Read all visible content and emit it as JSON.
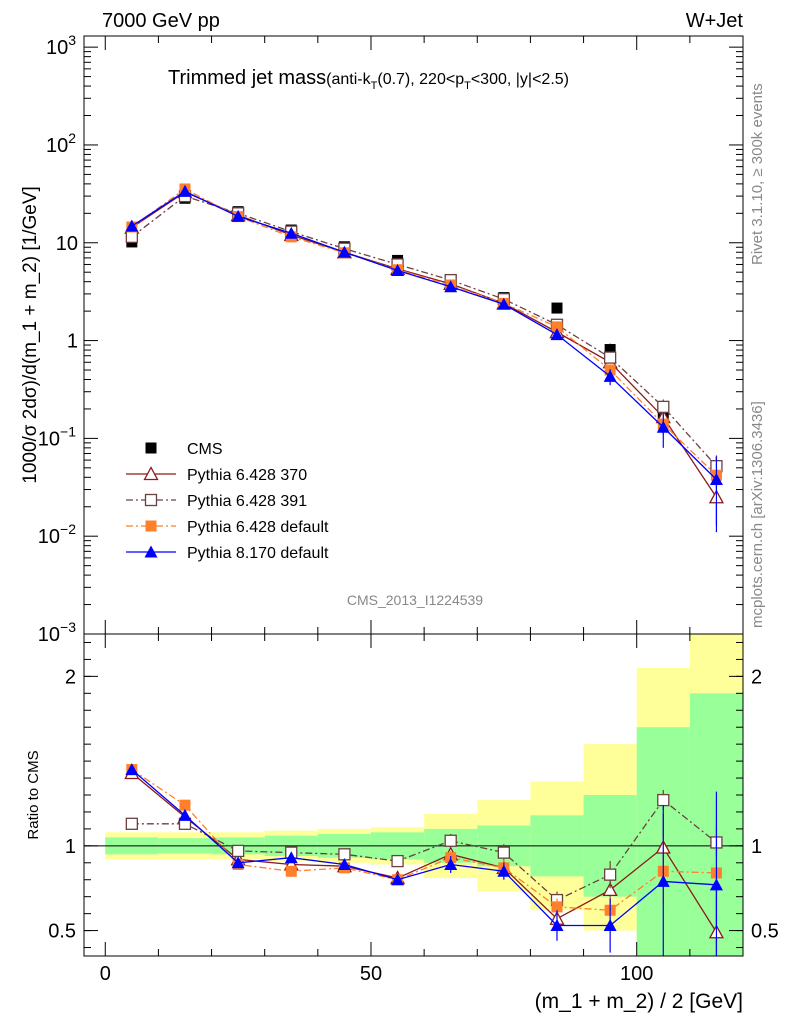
{
  "header": {
    "left": "7000 GeV pp",
    "right": "W+Jet"
  },
  "title": {
    "main": "Trimmed jet mass",
    "sub_a": "(anti-k",
    "sub_a_sub": "T",
    "sub_b": "(0.7), 220<p",
    "sub_b_sub": "T",
    "sub_c": "<300, |y|<2.5)"
  },
  "side_labels": {
    "rivet": "Rivet 3.1.10, ≥ 300k events",
    "mcplots": "mcplots.cern.ch [arXiv:1306.3436]"
  },
  "analysis_id": "CMS_2013_I1224539",
  "colors": {
    "cms": "#000000",
    "p6_370": "#8b1a1a",
    "p6_391": "#6b4040",
    "p6_default": "#ff7f2a",
    "p8_default": "#0000ff",
    "band_inner": "#99ff99",
    "band_outer": "#ffff99"
  },
  "chart_data": [
    {
      "type": "scatter",
      "panel": "main",
      "ylabel": "1000/σ 2dσ)/d(m_1 + m_2) [1/GeV]",
      "yscale": "log",
      "ylim": [
        0.001,
        1300
      ],
      "xlim": [
        -4,
        120
      ],
      "yticks": [
        {
          "v": 0.001,
          "label": "10",
          "exp": "−3"
        },
        {
          "v": 0.01,
          "label": "10",
          "exp": "−2"
        },
        {
          "v": 0.1,
          "label": "10",
          "exp": "−1"
        },
        {
          "v": 1,
          "label": "1",
          "exp": ""
        },
        {
          "v": 10,
          "label": "10",
          "exp": ""
        },
        {
          "v": 100,
          "label": "10",
          "exp": "2"
        },
        {
          "v": 1000,
          "label": "10",
          "exp": "3"
        }
      ],
      "x": [
        5,
        15,
        25,
        35,
        45,
        55,
        65,
        75,
        85,
        95,
        105,
        115
      ],
      "series": [
        {
          "name": "CMS",
          "key": "cms",
          "marker": "square",
          "line": "none",
          "values": [
            10.2,
            28.5,
            20.8,
            13.5,
            9.1,
            6.6,
            4.0,
            2.75,
            2.15,
            0.81,
            0.165,
            0.05
          ],
          "err": [
            0.6,
            1.0,
            0.8,
            0.6,
            0.4,
            0.4,
            0.3,
            0.2,
            0.2,
            0.12,
            0.04,
            0.015
          ]
        },
        {
          "name": "Pythia 6.428 370",
          "key": "p6_370",
          "marker": "triangle-open",
          "line": "solid",
          "values": [
            14.3,
            33.0,
            19.2,
            12.0,
            8.0,
            5.4,
            3.8,
            2.4,
            1.22,
            0.6,
            0.165,
            0.025
          ],
          "err": [
            0.6,
            1.2,
            0.8,
            0.6,
            0.4,
            0.3,
            0.3,
            0.2,
            0.12,
            0.08,
            0.04,
            0.012
          ]
        },
        {
          "name": "Pythia 6.428 391",
          "key": "p6_391",
          "marker": "square-open",
          "line": "dashdot",
          "values": [
            11.5,
            30.0,
            20.0,
            13.0,
            8.7,
            6.0,
            4.15,
            2.65,
            1.45,
            0.67,
            0.21,
            0.052
          ],
          "err": [
            0.5,
            1.1,
            0.8,
            0.6,
            0.4,
            0.3,
            0.3,
            0.2,
            0.14,
            0.08,
            0.04,
            0.015
          ]
        },
        {
          "name": "Pythia 6.428 default",
          "key": "p6_default",
          "marker": "square",
          "line": "dashdot",
          "values": [
            14.5,
            35.5,
            18.5,
            11.5,
            7.9,
            5.3,
            3.7,
            2.4,
            1.38,
            0.5,
            0.14,
            0.042
          ],
          "err": [
            0.6,
            1.3,
            0.8,
            0.6,
            0.4,
            0.3,
            0.3,
            0.2,
            0.14,
            0.07,
            0.03,
            0.013
          ]
        },
        {
          "name": "Pythia 8.170 default",
          "key": "p8_default",
          "marker": "triangle",
          "line": "solid",
          "values": [
            14.8,
            33.5,
            18.6,
            12.5,
            8.0,
            5.2,
            3.55,
            2.35,
            1.15,
            0.43,
            0.13,
            0.038
          ],
          "err": [
            0.6,
            1.2,
            0.8,
            0.6,
            0.4,
            0.3,
            0.3,
            0.2,
            0.12,
            0.08,
            0.05,
            0.027
          ]
        }
      ]
    },
    {
      "type": "scatter",
      "panel": "ratio",
      "xlabel": "(m_1 + m_2) / 2 [GeV]",
      "ylabel": "Ratio to CMS",
      "ylim": [
        0.35,
        2.25
      ],
      "xlim": [
        -4,
        120
      ],
      "yticks": [
        0.5,
        1,
        2
      ],
      "xticks": [
        0,
        50,
        100
      ],
      "bins": [
        [
          0,
          10
        ],
        [
          10,
          20
        ],
        [
          20,
          30
        ],
        [
          30,
          40
        ],
        [
          40,
          50
        ],
        [
          50,
          60
        ],
        [
          60,
          70
        ],
        [
          70,
          80
        ],
        [
          80,
          90
        ],
        [
          90,
          100
        ],
        [
          100,
          110
        ],
        [
          110,
          120
        ]
      ],
      "band_inner": [
        [
          0.95,
          1.05
        ],
        [
          0.955,
          1.045
        ],
        [
          0.95,
          1.05
        ],
        [
          0.94,
          1.06
        ],
        [
          0.93,
          1.07
        ],
        [
          0.92,
          1.08
        ],
        [
          0.9,
          1.1
        ],
        [
          0.88,
          1.12
        ],
        [
          0.82,
          1.18
        ],
        [
          0.7,
          1.3
        ],
        [
          0.3,
          1.7
        ],
        [
          0.15,
          1.9
        ]
      ],
      "band_outer": [
        [
          0.92,
          1.08
        ],
        [
          0.92,
          1.08
        ],
        [
          0.92,
          1.08
        ],
        [
          0.91,
          1.09
        ],
        [
          0.9,
          1.1
        ],
        [
          0.89,
          1.11
        ],
        [
          0.81,
          1.19
        ],
        [
          0.73,
          1.27
        ],
        [
          0.62,
          1.38
        ],
        [
          0.5,
          1.6
        ],
        [
          0.2,
          2.05
        ],
        [
          0.1,
          2.3
        ]
      ],
      "series": [
        {
          "key": "p6_370",
          "marker": "triangle-open",
          "line": "solid",
          "values": [
            1.43,
            1.17,
            0.92,
            0.89,
            0.88,
            0.81,
            0.95,
            0.87,
            0.57,
            0.74,
            0.99,
            0.49
          ],
          "err": [
            0.02,
            0.02,
            0.02,
            0.03,
            0.03,
            0.03,
            0.04,
            0.05,
            0.05,
            0.08,
            0.2,
            0.3
          ]
        },
        {
          "key": "p6_391",
          "marker": "square-open",
          "line": "dashdot",
          "values": [
            1.13,
            1.13,
            0.97,
            0.96,
            0.95,
            0.91,
            1.03,
            0.96,
            0.68,
            0.83,
            1.27,
            1.02
          ],
          "err": [
            0.02,
            0.02,
            0.02,
            0.03,
            0.03,
            0.03,
            0.04,
            0.05,
            0.05,
            0.08,
            0.06,
            0.08
          ]
        },
        {
          "key": "p6_default",
          "marker": "square",
          "line": "dashdot",
          "values": [
            1.45,
            1.24,
            0.89,
            0.85,
            0.87,
            0.8,
            0.93,
            0.87,
            0.64,
            0.62,
            0.85,
            0.84
          ],
          "err": [
            0.02,
            0.02,
            0.02,
            0.03,
            0.03,
            0.03,
            0.04,
            0.05,
            0.05,
            0.08,
            0.2,
            0.3
          ]
        },
        {
          "key": "p8_default",
          "marker": "triangle",
          "line": "solid",
          "values": [
            1.45,
            1.18,
            0.9,
            0.93,
            0.89,
            0.8,
            0.89,
            0.85,
            0.53,
            0.53,
            0.79,
            0.77
          ],
          "err": [
            0.03,
            0.02,
            0.02,
            0.03,
            0.03,
            0.03,
            0.05,
            0.05,
            0.09,
            0.16,
            0.45,
            0.55
          ]
        }
      ]
    }
  ]
}
